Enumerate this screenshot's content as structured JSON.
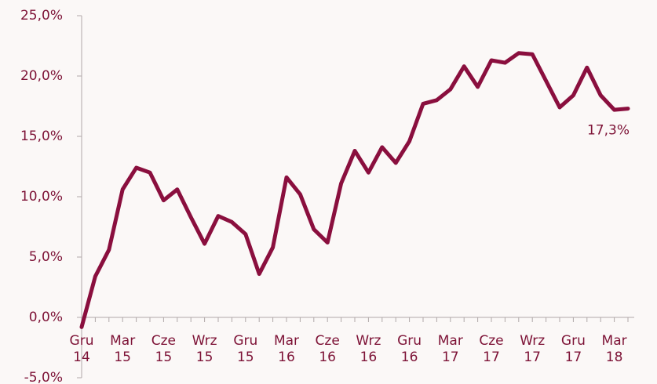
{
  "chart_data": {
    "type": "line",
    "categories": [
      "Gru 14",
      null,
      null,
      "Mar 15",
      null,
      null,
      "Cze 15",
      null,
      null,
      "Wrz 15",
      null,
      null,
      "Gru 15",
      null,
      null,
      "Mar 16",
      null,
      null,
      "Cze 16",
      null,
      null,
      "Wrz 16",
      null,
      null,
      "Gru 16",
      null,
      null,
      "Mar 17",
      null,
      null,
      "Cze 17",
      null,
      null,
      "Wrz 17",
      null,
      null,
      "Gru 17",
      null,
      null,
      "Mar 18",
      null
    ],
    "series": [
      {
        "color": "#8a0f3e",
        "values": [
          -0.8,
          3.4,
          5.6,
          10.6,
          12.4,
          12.0,
          9.7,
          10.6,
          8.3,
          6.1,
          8.4,
          7.9,
          6.9,
          3.6,
          5.8,
          11.6,
          10.2,
          7.3,
          6.2,
          11.1,
          13.8,
          12.0,
          14.1,
          12.8,
          14.6,
          17.7,
          18.0,
          18.9,
          20.8,
          19.1,
          21.3,
          21.1,
          21.9,
          21.8,
          19.6,
          17.4,
          18.4,
          20.7,
          18.4,
          17.2,
          17.3
        ],
        "value_labels": [
          null,
          null,
          null,
          null,
          null,
          null,
          null,
          null,
          null,
          null,
          null,
          null,
          null,
          null,
          null,
          null,
          null,
          null,
          null,
          null,
          null,
          null,
          null,
          null,
          null,
          null,
          null,
          null,
          null,
          null,
          null,
          null,
          null,
          null,
          null,
          null,
          null,
          null,
          null,
          null,
          "17,3%"
        ]
      }
    ],
    "ylim": [
      -5,
      25
    ],
    "yticks": [
      {
        "value": -5,
        "label": "-5,0%"
      },
      {
        "value": 0,
        "label": "0,0%"
      },
      {
        "value": 5,
        "label": "5,0%"
      },
      {
        "value": 10,
        "label": "10,0%"
      },
      {
        "value": 15,
        "label": "15,0%"
      },
      {
        "value": 20,
        "label": "20,0%"
      },
      {
        "value": 25,
        "label": "25,0%"
      }
    ]
  }
}
